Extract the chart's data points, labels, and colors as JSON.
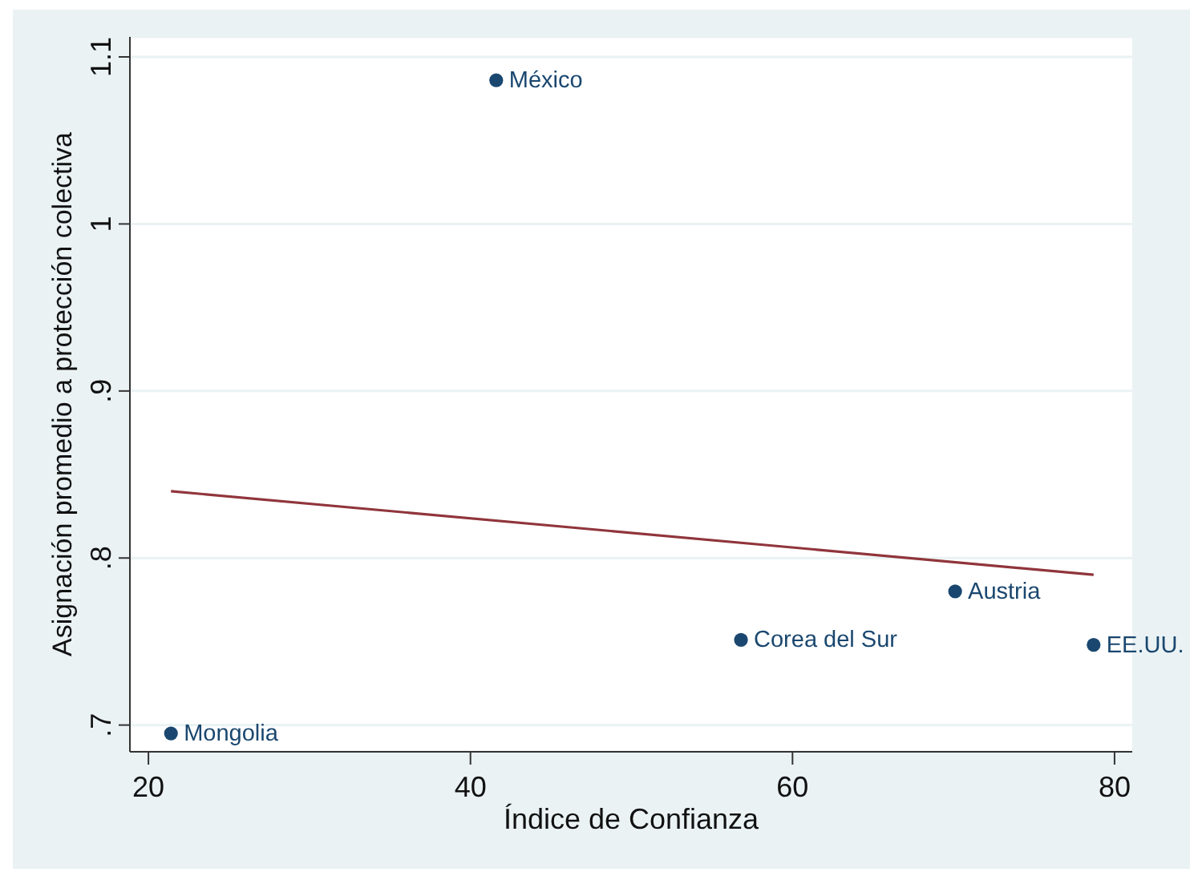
{
  "chart_data": {
    "type": "scatter",
    "xlabel": "Índice de Confianza",
    "ylabel": "Asignación promedio a protección colectiva",
    "xlim": [
      18.85,
      81.1
    ],
    "ylim": [
      0.684,
      1.112
    ],
    "xticks": [
      20,
      40,
      60,
      80
    ],
    "yticks": [
      {
        "value": 0.7,
        "label": ".7"
      },
      {
        "value": 0.8,
        "label": ".8"
      },
      {
        "value": 0.9,
        "label": ".9"
      },
      1,
      1.1
    ],
    "grid": "y",
    "marker": "circle",
    "series": [
      {
        "color": "#1a476f",
        "x": [
          21.4,
          41.6,
          56.8,
          70.1,
          78.7
        ],
        "values": [
          0.695,
          1.086,
          0.751,
          0.78,
          0.748
        ]
      },
      {
        "type": "line",
        "color": "#90353b",
        "marker": "none",
        "x": [
          21.4,
          78.7
        ],
        "values": [
          0.84,
          0.79
        ]
      }
    ],
    "annotations": [
      {
        "text": "Mongolia",
        "x": 21.4,
        "y": 0.695
      },
      {
        "text": "México",
        "x": 41.6,
        "y": 1.086
      },
      {
        "text": "Corea del Sur",
        "x": 56.8,
        "y": 0.751
      },
      {
        "text": "Austria",
        "x": 70.1,
        "y": 0.78
      },
      {
        "text": "EE.UU.",
        "x": 78.7,
        "y": 0.748
      }
    ]
  }
}
